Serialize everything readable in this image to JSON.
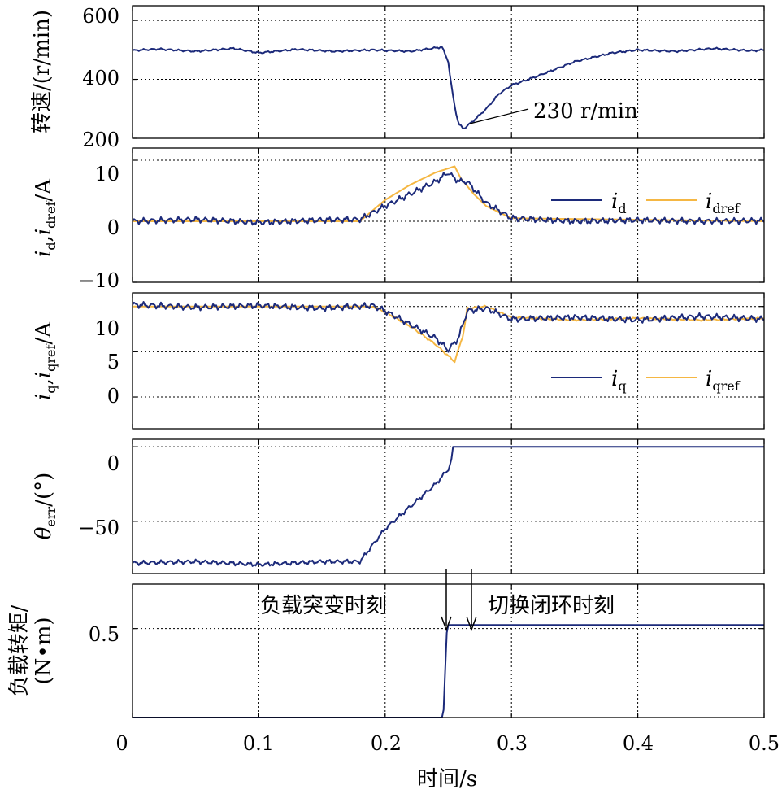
{
  "colors": {
    "blue": "#1c2a7a",
    "orange": "#f5b743"
  },
  "xaxis": {
    "label": "时间/s",
    "ticks": [
      "0",
      "0.1",
      "0.2",
      "0.3",
      "0.4",
      "0.5"
    ]
  },
  "chart_data": [
    {
      "type": "line",
      "ylabel": "转速/(r/min)",
      "ylim": [
        200,
        650
      ],
      "yticks": [
        "200",
        "400",
        "600"
      ],
      "grid": true,
      "annotation": "230 r/min",
      "series": [
        {
          "color": "#1c2a7a",
          "x": [
            0,
            0.02,
            0.05,
            0.08,
            0.1,
            0.13,
            0.16,
            0.19,
            0.22,
            0.245,
            0.25,
            0.252,
            0.255,
            0.258,
            0.262,
            0.27,
            0.28,
            0.29,
            0.3,
            0.32,
            0.35,
            0.38,
            0.4,
            0.43,
            0.46,
            0.49,
            0.5
          ],
          "y": [
            498,
            503,
            495,
            505,
            490,
            502,
            495,
            500,
            495,
            510,
            460,
            390,
            310,
            250,
            232,
            260,
            300,
            350,
            380,
            410,
            460,
            490,
            500,
            495,
            505,
            497,
            500
          ]
        }
      ]
    },
    {
      "type": "line",
      "ylabel": "id,idref/A",
      "ylim": [
        -10,
        12
      ],
      "yticks": [
        "−10",
        "0",
        "10"
      ],
      "grid": true,
      "legend": "right",
      "series": [
        {
          "name": "id",
          "color": "#1c2a7a",
          "x": [
            0,
            0.05,
            0.1,
            0.15,
            0.18,
            0.2,
            0.22,
            0.24,
            0.25,
            0.255,
            0.26,
            0.265,
            0.28,
            0.3,
            0.35,
            0.4,
            0.45,
            0.5
          ],
          "y": [
            0,
            0.3,
            -0.2,
            0.2,
            0.3,
            2.5,
            4.5,
            6.5,
            8,
            7,
            6.5,
            6.5,
            3,
            0.5,
            0,
            0.2,
            0,
            0.1
          ]
        },
        {
          "name": "idref",
          "color": "#f5b743",
          "x": [
            0,
            0.18,
            0.2,
            0.22,
            0.24,
            0.255,
            0.26,
            0.27,
            0.28,
            0.3,
            0.5
          ],
          "y": [
            0,
            0,
            3.5,
            6,
            8,
            9,
            7,
            4.5,
            2.5,
            0.5,
            0
          ]
        }
      ]
    },
    {
      "type": "line",
      "ylabel": "iq,iqref/A",
      "ylim": [
        -3.5,
        11.5
      ],
      "yticks": [
        "0",
        "5",
        "10"
      ],
      "grid": true,
      "legend": "right",
      "series": [
        {
          "name": "iq",
          "color": "#1c2a7a",
          "x": [
            0,
            0.05,
            0.1,
            0.15,
            0.19,
            0.2,
            0.22,
            0.24,
            0.25,
            0.255,
            0.258,
            0.265,
            0.28,
            0.3,
            0.35,
            0.4,
            0.45,
            0.5
          ],
          "y": [
            10.2,
            9.9,
            10.1,
            9.8,
            10.1,
            9.5,
            8,
            6.5,
            5.2,
            6,
            6.5,
            9.5,
            9.8,
            8.6,
            8.8,
            8.5,
            8.9,
            8.6
          ]
        },
        {
          "name": "iqref",
          "color": "#f5b743",
          "x": [
            0,
            0.19,
            0.2,
            0.22,
            0.24,
            0.255,
            0.262,
            0.265,
            0.28,
            0.3,
            0.35,
            0.4,
            0.45,
            0.5
          ],
          "y": [
            10,
            10,
            9.4,
            7.8,
            5.8,
            3.9,
            7,
            9.8,
            10,
            8.8,
            8.5,
            8.7,
            8.5,
            8.7
          ]
        }
      ]
    },
    {
      "type": "line",
      "ylabel": "θerr/(°)",
      "ylim": [
        -85,
        5
      ],
      "yticks": [
        "−50",
        "0"
      ],
      "grid": true,
      "series": [
        {
          "color": "#1c2a7a",
          "x": [
            0,
            0.05,
            0.1,
            0.15,
            0.18,
            0.2,
            0.22,
            0.24,
            0.25,
            0.253,
            0.2535,
            0.5
          ],
          "y": [
            -78,
            -77,
            -79,
            -77,
            -77,
            -55,
            -40,
            -25,
            -15,
            -8,
            0,
            0
          ]
        }
      ]
    },
    {
      "type": "line",
      "ylabel": "负载转矩/(N•m)",
      "ylim": [
        0,
        0.75
      ],
      "yticks": [
        "0.5"
      ],
      "grid": true,
      "annotations": [
        "负载突变时刻",
        "切换闭环时刻"
      ],
      "series": [
        {
          "color": "#1c2a7a",
          "x": [
            0,
            0.246,
            0.249,
            0.5
          ],
          "y": [
            0,
            0,
            0.52,
            0.52
          ]
        }
      ]
    }
  ]
}
